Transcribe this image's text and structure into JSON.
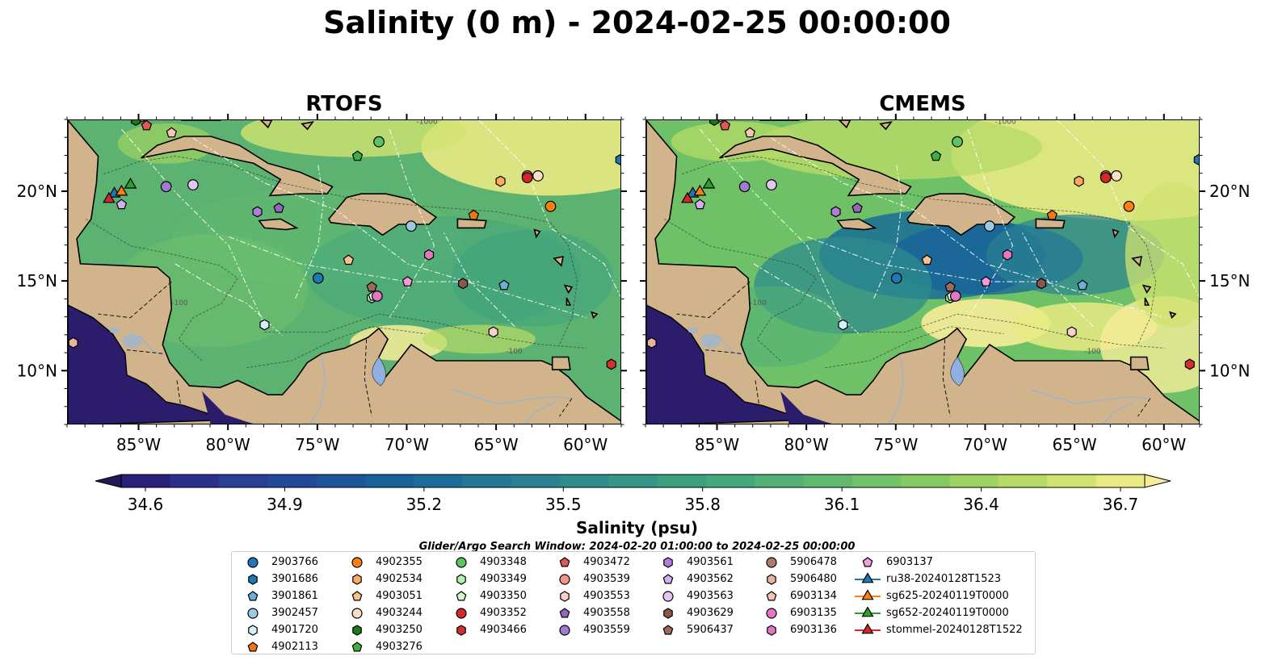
{
  "title": "Salinity (0 m) - 2024-02-25 00:00:00",
  "panels": [
    {
      "title": "RTOFS",
      "colors": [
        "#5cb270",
        "#5eb46e",
        "#54ad71",
        "#62b76c",
        "#4fa873"
      ]
    },
    {
      "title": "CMEMS",
      "colors": [
        "#6ec166",
        "#92d05e",
        "#3f9a79",
        "#2a7c84",
        "#d9e47a"
      ]
    }
  ],
  "lat_labels": [
    "20°N",
    "15°N",
    "10°N"
  ],
  "lon_labels": [
    "85°W",
    "80°W",
    "75°W",
    "70°W",
    "65°W",
    "60°W"
  ],
  "colorbar": {
    "label": "Salinity (psu)",
    "ticks": [
      "34.6",
      "34.9",
      "35.2",
      "35.5",
      "35.8",
      "36.1",
      "36.4",
      "36.7"
    ],
    "colors": [
      "#251856",
      "#29207a",
      "#2b2f8e",
      "#2a3d97",
      "#24489a",
      "#1d559b",
      "#18629a",
      "#1a6d98",
      "#217795",
      "#298191",
      "#2f8b8c",
      "#359586",
      "#3b9f80",
      "#45a87b",
      "#52b176",
      "#61b970",
      "#71c26a",
      "#86ca66",
      "#9fd362",
      "#b8db66",
      "#d1e370",
      "#e8ea83",
      "#f6ec98"
    ]
  },
  "search_window": "Glider/Argo Search Window: 2024-02-20 01:00:00 to 2024-02-25 00:00:00",
  "chart_data": {
    "type": "heatmap",
    "variable": "Salinity",
    "depth": "0 m",
    "time": "2024-02-25 00:00:00",
    "models": [
      "RTOFS",
      "CMEMS"
    ],
    "x_range": [
      -89,
      -58
    ],
    "y_range": [
      7,
      24
    ],
    "color_range": [
      34.6,
      36.7
    ],
    "contour_labels": [
      "-100",
      "-1000"
    ],
    "profiles": [
      {
        "id": "2903766",
        "marker": "circle",
        "color": "#1f77b4",
        "lon": -75.0,
        "lat": 15.2
      },
      {
        "id": "4902355",
        "marker": "circle",
        "color": "#ff7f0e",
        "lon": -62.0,
        "lat": 19.2
      },
      {
        "id": "4903348",
        "marker": "circle",
        "color": "#5ec462",
        "lon": -71.6,
        "lat": 22.8
      },
      {
        "id": "4903472",
        "marker": "pentagon",
        "color": "#e15759",
        "lon": -84.6,
        "lat": 23.7
      },
      {
        "id": "4903561",
        "marker": "hexagon",
        "color": "#b07ed6",
        "lon": -78.4,
        "lat": 18.9
      },
      {
        "id": "5906478",
        "marker": "circle",
        "color": "#b07b6b",
        "lon": -84.9,
        "lat": 24.2
      },
      {
        "id": "6903137",
        "marker": "pentagon",
        "color": "#f59bd8",
        "lon": -70.0,
        "lat": 15.0
      },
      {
        "id": "3901686",
        "marker": "hexagon",
        "color": "#1f77b4",
        "lon": -58.1,
        "lat": 21.8
      },
      {
        "id": "4902534",
        "marker": "hexagon",
        "color": "#ffab5c",
        "lon": -64.8,
        "lat": 20.6
      },
      {
        "id": "4903349",
        "marker": "hexagon",
        "color": "#b3f0b0",
        "lon": -72.0,
        "lat": 14.1
      },
      {
        "id": "4903539",
        "marker": "circle",
        "color": "#f4948f",
        "lon": -63.3,
        "lat": 20.9
      },
      {
        "id": "4903562",
        "marker": "pentagon",
        "color": "#d2b0f0",
        "lon": -86.0,
        "lat": 19.3
      },
      {
        "id": "5906480",
        "marker": "hexagon",
        "color": "#e8b4a0",
        "lon": -88.7,
        "lat": 11.6
      },
      {
        "id": "ru38-20240128T1523",
        "marker": "triangle",
        "color": "#1f77b4",
        "lon": -86.4,
        "lat": 19.9
      },
      {
        "id": "3901861",
        "marker": "pentagon",
        "color": "#6baed6",
        "lon": -64.6,
        "lat": 14.8
      },
      {
        "id": "4903051",
        "marker": "pentagon",
        "color": "#f8c28e",
        "lon": -73.3,
        "lat": 16.2
      },
      {
        "id": "4903350",
        "marker": "pentagon",
        "color": "#d4f7d0",
        "lon": -71.9,
        "lat": 14.2
      },
      {
        "id": "4903553",
        "marker": "hexagon",
        "color": "#fbd0cc",
        "lon": -65.2,
        "lat": 12.2
      },
      {
        "id": "4903563",
        "marker": "circle",
        "color": "#e4c6f5",
        "lon": -82.0,
        "lat": 20.4
      },
      {
        "id": "6903134",
        "marker": "pentagon",
        "color": "#f5c6b4",
        "lon": -83.2,
        "lat": 23.3
      },
      {
        "id": "sg625-20240119T0000",
        "marker": "triangle",
        "color": "#ff7f0e",
        "lon": -86.0,
        "lat": 20.0
      },
      {
        "id": "3902457",
        "marker": "circle",
        "color": "#9ecae1",
        "lon": -69.8,
        "lat": 18.1
      },
      {
        "id": "4903244",
        "marker": "circle",
        "color": "#fde0c5",
        "lon": -62.7,
        "lat": 20.9
      },
      {
        "id": "4903352",
        "marker": "circle",
        "color": "#d62728",
        "lon": -63.3,
        "lat": 20.8
      },
      {
        "id": "4903558",
        "marker": "pentagon",
        "color": "#9467bd",
        "lon": -77.2,
        "lat": 19.1
      },
      {
        "id": "4903629",
        "marker": "hexagon",
        "color": "#8c564b",
        "lon": -66.9,
        "lat": 14.9
      },
      {
        "id": "6903135",
        "marker": "circle",
        "color": "#e377c2",
        "lon": -71.7,
        "lat": 14.2
      },
      {
        "id": "sg652-20240119T0000",
        "marker": "triangle",
        "color": "#2ca02c",
        "lon": -85.5,
        "lat": 20.4
      },
      {
        "id": "4901720",
        "marker": "hexagon",
        "color": "#d6eefc",
        "lon": -78.0,
        "lat": 12.6
      },
      {
        "id": "4903250",
        "marker": "hexagon",
        "color": "#1b7a1b",
        "lon": -85.2,
        "lat": 24.0
      },
      {
        "id": "4903466",
        "marker": "hexagon",
        "color": "#d03030",
        "lon": -58.6,
        "lat": 10.4
      },
      {
        "id": "4903559",
        "marker": "circle",
        "color": "#a07cd0",
        "lon": -83.5,
        "lat": 20.3
      },
      {
        "id": "5906437",
        "marker": "pentagon",
        "color": "#9c6b5b",
        "lon": -72.0,
        "lat": 14.7
      },
      {
        "id": "6903136",
        "marker": "hexagon",
        "color": "#e377c2",
        "lon": -68.8,
        "lat": 16.5
      },
      {
        "id": "stommel-20240128T1522",
        "marker": "triangle",
        "color": "#d62728",
        "lon": -86.7,
        "lat": 19.6
      },
      {
        "id": "4902113",
        "marker": "pentagon",
        "color": "#f07814",
        "lon": -66.3,
        "lat": 18.7
      },
      {
        "id": "4903276",
        "marker": "pentagon",
        "color": "#3cb043",
        "lon": -72.8,
        "lat": 22.0
      }
    ]
  },
  "legend": [
    [
      "2903766",
      "3901686",
      "3901861",
      "3902457",
      "4901720",
      "4902113"
    ],
    [
      "4902355",
      "4902534",
      "4903051",
      "4903244",
      "4903250",
      "4903276"
    ],
    [
      "4903348",
      "4903349",
      "4903350",
      "4903352",
      "4903466"
    ],
    [
      "4903472",
      "4903539",
      "4903553",
      "4903558",
      "4903559"
    ],
    [
      "4903561",
      "4903562",
      "4903563",
      "4903629",
      "5906437"
    ],
    [
      "5906478",
      "5906480",
      "6903134",
      "6903135",
      "6903136"
    ],
    [
      "6903137",
      "ru38-20240128T1523",
      "sg625-20240119T0000",
      "sg652-20240119T0000",
      "stommel-20240128T1522"
    ]
  ]
}
